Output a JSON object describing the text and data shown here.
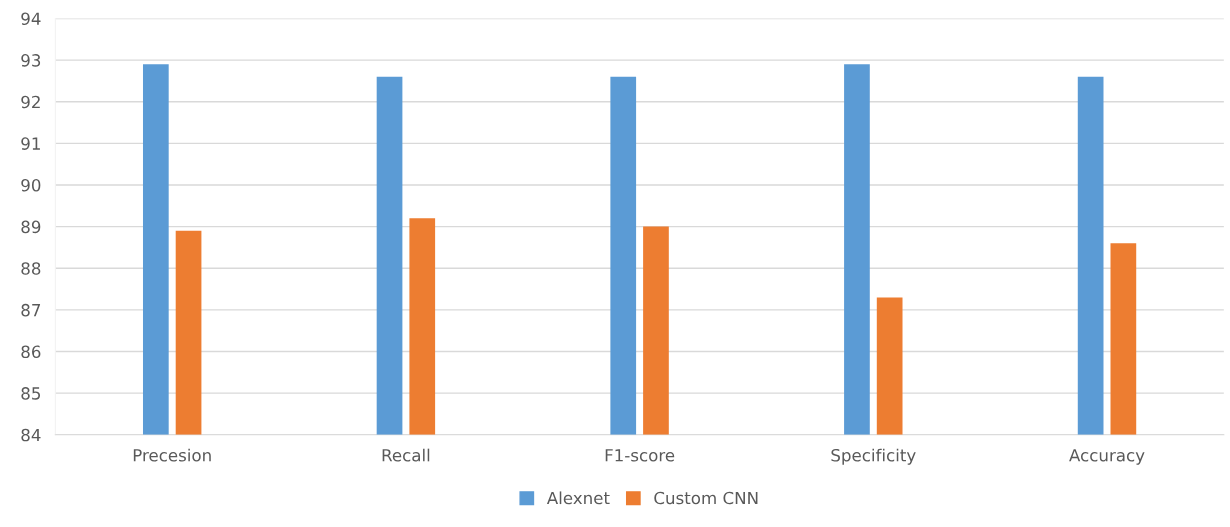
{
  "chart_data": {
    "type": "bar",
    "categories": [
      "Precesion",
      "Recall",
      "F1-score",
      "Specificity",
      "Accuracy"
    ],
    "series": [
      {
        "name": "Alexnet",
        "color": "#5b9bd5",
        "values": [
          92.9,
          92.6,
          92.6,
          92.9,
          92.6
        ]
      },
      {
        "name": "Custom CNN",
        "color": "#ed7d31",
        "values": [
          88.9,
          89.2,
          89.0,
          87.3,
          88.6
        ]
      }
    ],
    "ylim": [
      84,
      94
    ],
    "yticks": [
      84,
      85,
      86,
      87,
      88,
      89,
      90,
      91,
      92,
      93,
      94
    ],
    "grid": "y",
    "legend": "bottom"
  }
}
